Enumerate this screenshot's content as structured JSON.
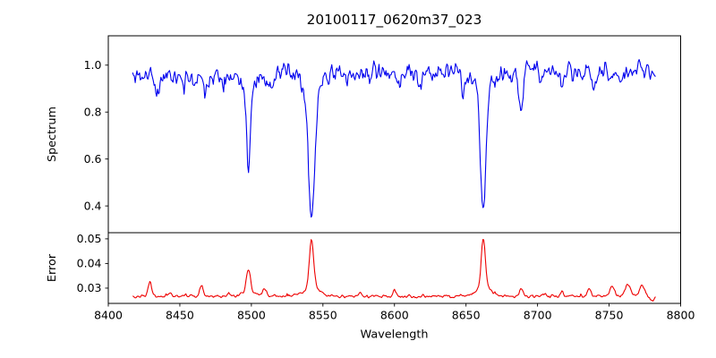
{
  "figure": {
    "title": "20100117_0620m37_023",
    "background_color": "#ffffff",
    "xlabel": "Wavelength",
    "xlim": [
      8400,
      8800
    ],
    "xticks": [
      8400,
      8450,
      8500,
      8550,
      8600,
      8650,
      8700,
      8750,
      8800
    ],
    "xtick_labels": [
      "8400",
      "8450",
      "8500",
      "8550",
      "8600",
      "8650",
      "8700",
      "8750",
      "8800"
    ]
  },
  "chart_data": [
    {
      "type": "line",
      "panel": "spectrum",
      "title": "20100117_0620m37_023",
      "xlabel": "Wavelength",
      "ylabel": "Spectrum",
      "xlim": [
        8400,
        8800
      ],
      "ylim": [
        0.286,
        1.125
      ],
      "yticks": [
        0.4,
        0.6,
        0.8,
        1.0
      ],
      "ytick_labels": [
        "0.4",
        "0.6",
        "0.8",
        "1.0"
      ],
      "line_color": "#0000ee",
      "grid": false,
      "legend": null,
      "x_data_range": [
        8417,
        8783
      ],
      "step": 0.6,
      "continuum_start": 0.955,
      "continuum_end": 0.975,
      "noise_sigma": 0.032,
      "noise_seed": 11,
      "downspike_prob": 0.02,
      "downspike_max": 0.055,
      "smooth_passes": 1,
      "features_gaussian": [
        {
          "center": 8498.0,
          "amp": -0.4,
          "sigma": 1.3
        },
        {
          "center": 8498.0,
          "amp": -0.04,
          "sigma": 5.0
        },
        {
          "center": 8542.1,
          "amp": -0.6,
          "sigma": 2.0
        },
        {
          "center": 8542.1,
          "amp": -0.05,
          "sigma": 8.0
        },
        {
          "center": 8662.1,
          "amp": -0.56,
          "sigma": 1.9
        },
        {
          "center": 8662.1,
          "amp": -0.05,
          "sigma": 8.0
        },
        {
          "center": 8688.6,
          "amp": -0.16,
          "sigma": 1.5
        },
        {
          "center": 8434.0,
          "amp": -0.1,
          "sigma": 1.2
        },
        {
          "center": 8452.0,
          "amp": -0.05,
          "sigma": 1.0
        },
        {
          "center": 8468.0,
          "amp": -0.07,
          "sigma": 1.0
        },
        {
          "center": 8513.0,
          "amp": -0.06,
          "sigma": 1.0
        },
        {
          "center": 8602.0,
          "amp": -0.05,
          "sigma": 1.0
        },
        {
          "center": 8617.0,
          "amp": -0.07,
          "sigma": 1.0
        },
        {
          "center": 8648.0,
          "amp": -0.05,
          "sigma": 1.0
        },
        {
          "center": 8717.0,
          "amp": -0.08,
          "sigma": 1.2
        },
        {
          "center": 8739.0,
          "amp": -0.06,
          "sigma": 1.0
        },
        {
          "center": 8758.0,
          "amp": -0.06,
          "sigma": 1.0
        },
        {
          "center": 8532.0,
          "amp": 0.06,
          "sigma": 0.8
        },
        {
          "center": 8560.0,
          "amp": 0.04,
          "sigma": 0.8
        },
        {
          "center": 8692.0,
          "amp": 0.07,
          "sigma": 0.8
        },
        {
          "center": 8770.0,
          "amp": 0.05,
          "sigma": 1.0
        }
      ]
    },
    {
      "type": "line",
      "panel": "error",
      "xlabel": "Wavelength",
      "ylabel": "Error",
      "xlim": [
        8400,
        8800
      ],
      "ylim": [
        0.0238,
        0.0525
      ],
      "yticks": [
        0.03,
        0.04,
        0.05
      ],
      "ytick_labels": [
        "0.03",
        "0.04",
        "0.05"
      ],
      "line_color": "#ee0000",
      "grid": false,
      "legend": null,
      "x_data_range": [
        8417,
        8783
      ],
      "step": 0.6,
      "continuum_start": 0.0267,
      "continuum_end": 0.0267,
      "noise_sigma": 0.00045,
      "upspike_prob": 0.02,
      "upspike_max": 0.0018,
      "smooth_passes": 1,
      "features_gaussian": [
        {
          "center": 8429.0,
          "amp": 0.0065,
          "sigma": 1.2
        },
        {
          "center": 8443.0,
          "amp": 0.0018,
          "sigma": 1.0
        },
        {
          "center": 8465.0,
          "amp": 0.0048,
          "sigma": 1.1
        },
        {
          "center": 8484.0,
          "amp": 0.0015,
          "sigma": 1.0
        },
        {
          "center": 8498.0,
          "amp": 0.0105,
          "sigma": 1.3
        },
        {
          "center": 8498.0,
          "amp": 0.0015,
          "sigma": 5.0
        },
        {
          "center": 8509.0,
          "amp": 0.0028,
          "sigma": 1.2
        },
        {
          "center": 8542.1,
          "amp": 0.02,
          "sigma": 1.5
        },
        {
          "center": 8542.1,
          "amp": 0.003,
          "sigma": 6.0
        },
        {
          "center": 8576.0,
          "amp": 0.0015,
          "sigma": 1.0
        },
        {
          "center": 8600.0,
          "amp": 0.0025,
          "sigma": 0.9
        },
        {
          "center": 8662.1,
          "amp": 0.0215,
          "sigma": 1.4
        },
        {
          "center": 8662.1,
          "amp": 0.003,
          "sigma": 6.0
        },
        {
          "center": 8688.6,
          "amp": 0.0032,
          "sigma": 1.2
        },
        {
          "center": 8705.0,
          "amp": 0.0015,
          "sigma": 1.0
        },
        {
          "center": 8717.0,
          "amp": 0.002,
          "sigma": 1.0
        },
        {
          "center": 8736.0,
          "amp": 0.0028,
          "sigma": 1.3
        },
        {
          "center": 8752.0,
          "amp": 0.0042,
          "sigma": 1.6
        },
        {
          "center": 8763.0,
          "amp": 0.005,
          "sigma": 1.8
        },
        {
          "center": 8773.0,
          "amp": 0.0048,
          "sigma": 1.5
        },
        {
          "center": 8780.5,
          "amp": -0.0015,
          "sigma": 1.5
        }
      ]
    }
  ]
}
